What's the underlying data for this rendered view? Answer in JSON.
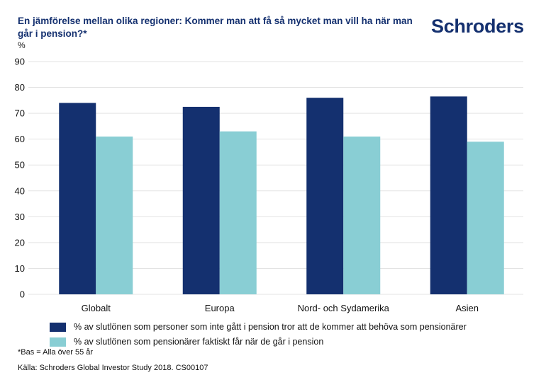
{
  "header": {
    "title": "En jämförelse mellan olika regioner: Kommer man att få så mycket man vill ha när man går i pension?*",
    "unit_label": "%",
    "logo_text": "Schroders"
  },
  "footnotes": {
    "base": "*Bas = Alla över 55 år",
    "source": "Källa: Schroders Global Investor Study 2018. CS00107"
  },
  "chart_data": {
    "type": "bar",
    "title": "En jämförelse mellan olika regioner: Kommer man att få så mycket man vill ha när man går i pension?*",
    "xlabel": "",
    "ylabel": "%",
    "ylim": [
      0,
      90
    ],
    "yticks": [
      0,
      10,
      20,
      30,
      40,
      50,
      60,
      70,
      80,
      90
    ],
    "grid": true,
    "legend_position": "bottom",
    "categories": [
      "Globalt",
      "Europa",
      "Nord- och Sydamerika",
      "Asien"
    ],
    "series": [
      {
        "name": "% av slutlönen som personer som inte gått i pension tror att de kommer att behöva som pensionärer",
        "color": "#14306f",
        "values": [
          74,
          72.5,
          76,
          76.5
        ]
      },
      {
        "name": "% av slutlönen som pensionärer faktiskt får när de går i pension",
        "color": "#89ced4",
        "values": [
          61,
          63,
          61,
          59
        ]
      }
    ]
  }
}
